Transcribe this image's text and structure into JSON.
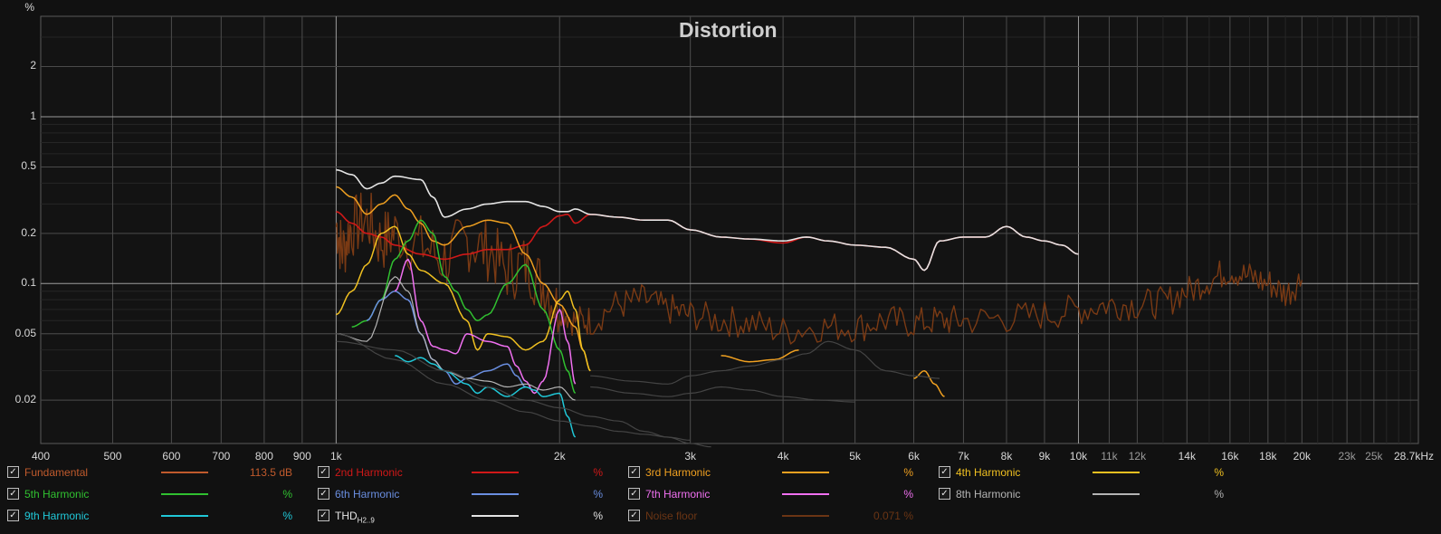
{
  "chart_data": {
    "type": "line",
    "title": "Distortion",
    "y_unit": "%",
    "y_scale": "log",
    "x_scale": "log",
    "ylim": [
      0.011,
      4.0
    ],
    "xlim": [
      400,
      28700
    ],
    "grid": true,
    "y_ticks": [
      {
        "v": 0.02,
        "label": "0.02"
      },
      {
        "v": 0.05,
        "label": "0.05"
      },
      {
        "v": 0.1,
        "label": "0.1"
      },
      {
        "v": 0.2,
        "label": "0.2"
      },
      {
        "v": 0.5,
        "label": "0.5"
      },
      {
        "v": 1,
        "label": "1"
      },
      {
        "v": 2,
        "label": "2"
      }
    ],
    "x_ticks": [
      {
        "v": 400,
        "label": "400"
      },
      {
        "v": 500,
        "label": "500"
      },
      {
        "v": 600,
        "label": "600"
      },
      {
        "v": 700,
        "label": "700"
      },
      {
        "v": 800,
        "label": "800"
      },
      {
        "v": 900,
        "label": "900"
      },
      {
        "v": 1000,
        "label": "1k"
      },
      {
        "v": 2000,
        "label": "2k"
      },
      {
        "v": 3000,
        "label": "3k"
      },
      {
        "v": 4000,
        "label": "4k"
      },
      {
        "v": 5000,
        "label": "5k"
      },
      {
        "v": 6000,
        "label": "6k"
      },
      {
        "v": 7000,
        "label": "7k"
      },
      {
        "v": 8000,
        "label": "8k"
      },
      {
        "v": 9000,
        "label": "9k"
      },
      {
        "v": 10000,
        "label": "10k"
      },
      {
        "v": 11000,
        "label": "11k",
        "minor": true
      },
      {
        "v": 12000,
        "label": "12k",
        "minor": true
      },
      {
        "v": 14000,
        "label": "14k"
      },
      {
        "v": 16000,
        "label": "16k"
      },
      {
        "v": 18000,
        "label": "18k"
      },
      {
        "v": 20000,
        "label": "20k"
      },
      {
        "v": 23000,
        "label": "23k",
        "minor": true
      },
      {
        "v": 25000,
        "label": "25k",
        "minor": true
      },
      {
        "v": 28700,
        "label": "28.7kHz"
      }
    ],
    "series": [
      {
        "key": "noise",
        "name": "Noise floor",
        "color": "#7a3a14",
        "width": 1.4,
        "jitter": 0.12,
        "x": [
          1000,
          1020,
          1050,
          1100,
          1150,
          1200,
          1300,
          1400,
          1500,
          1600,
          1700,
          1800,
          1900,
          2000,
          2100,
          2200,
          2400,
          2600,
          2800,
          3000,
          3300,
          3600,
          4000,
          4500,
          5000,
          5500,
          6000,
          6500,
          7000,
          8000,
          9000,
          10000,
          11000,
          12000,
          13000,
          14000,
          15000,
          16000,
          17000,
          18000,
          19000,
          20000
        ],
        "y": [
          0.22,
          0.16,
          0.22,
          0.24,
          0.18,
          0.2,
          0.17,
          0.14,
          0.18,
          0.16,
          0.12,
          0.13,
          0.1,
          0.07,
          0.06,
          0.06,
          0.075,
          0.08,
          0.07,
          0.065,
          0.06,
          0.058,
          0.052,
          0.055,
          0.055,
          0.06,
          0.058,
          0.06,
          0.06,
          0.062,
          0.065,
          0.07,
          0.075,
          0.075,
          0.077,
          0.09,
          0.105,
          0.12,
          0.11,
          0.1,
          0.088,
          0.105
        ]
      },
      {
        "key": "h2",
        "name": "2nd Harmonic",
        "color": "#d01818",
        "width": 1.6,
        "x": [
          1000,
          1050,
          1100,
          1150,
          1200,
          1300,
          1400,
          1500,
          1600,
          1700,
          1800,
          1900,
          2000,
          2050,
          2100,
          2200,
          2400,
          2600,
          2800,
          3000,
          3300,
          3600,
          4000,
          4300,
          4600,
          5000,
          5500,
          6000,
          6200,
          6500,
          7000,
          7500,
          8000,
          8500,
          9000,
          9500,
          10000
        ],
        "y": [
          0.27,
          0.23,
          0.2,
          0.19,
          0.17,
          0.15,
          0.14,
          0.15,
          0.16,
          0.16,
          0.17,
          0.22,
          0.255,
          0.26,
          0.23,
          0.26,
          0.25,
          0.24,
          0.24,
          0.21,
          0.19,
          0.185,
          0.175,
          0.19,
          0.18,
          0.17,
          0.165,
          0.14,
          0.12,
          0.18,
          0.19,
          0.19,
          0.22,
          0.19,
          0.18,
          0.17,
          0.15
        ]
      },
      {
        "key": "thd",
        "name": "THD",
        "color": "#e4e4e4",
        "width": 1.6,
        "x": [
          1000,
          1050,
          1100,
          1150,
          1200,
          1300,
          1350,
          1400,
          1500,
          1600,
          1700,
          1800,
          1900,
          2000,
          2050,
          2100,
          2200,
          2400,
          2600,
          2800,
          3000,
          3300,
          3600,
          4000,
          4300,
          4600,
          5000,
          5500,
          6000,
          6200,
          6500,
          7000,
          7500,
          8000,
          8500,
          9000,
          9500,
          10000
        ],
        "y": [
          0.48,
          0.45,
          0.37,
          0.4,
          0.44,
          0.42,
          0.33,
          0.25,
          0.28,
          0.3,
          0.31,
          0.31,
          0.29,
          0.27,
          0.27,
          0.28,
          0.26,
          0.25,
          0.24,
          0.24,
          0.21,
          0.19,
          0.185,
          0.18,
          0.19,
          0.18,
          0.17,
          0.165,
          0.14,
          0.12,
          0.18,
          0.19,
          0.19,
          0.22,
          0.19,
          0.18,
          0.17,
          0.15
        ]
      },
      {
        "key": "h3",
        "name": "3rd Harmonic",
        "color": "#f0a020",
        "width": 1.5,
        "x": [
          1000,
          1050,
          1100,
          1150,
          1200,
          1250,
          1300,
          1350,
          1400,
          1500,
          1600,
          1700,
          1800,
          1900,
          2000,
          2100,
          2150,
          2200
        ],
        "y": [
          0.38,
          0.33,
          0.26,
          0.3,
          0.34,
          0.28,
          0.23,
          0.18,
          0.17,
          0.22,
          0.24,
          0.23,
          0.15,
          0.1,
          0.075,
          0.055,
          0.04,
          0.03
        ]
      },
      {
        "key": "h3b",
        "name": "",
        "color": "#f0a020",
        "width": 1.5,
        "x": [
          3300,
          3600,
          3900,
          4200
        ],
        "y": [
          0.037,
          0.034,
          0.035,
          0.04
        ]
      },
      {
        "key": "h3c",
        "name": "",
        "color": "#f0a020",
        "width": 1.5,
        "x": [
          6000,
          6200,
          6400,
          6600
        ],
        "y": [
          0.027,
          0.03,
          0.025,
          0.021
        ]
      },
      {
        "key": "h4",
        "name": "4th Harmonic",
        "color": "#f0c020",
        "width": 1.5,
        "x": [
          1000,
          1050,
          1100,
          1150,
          1200,
          1250,
          1300,
          1400,
          1500,
          1550,
          1600,
          1700,
          1800,
          1900,
          2000,
          2050,
          2100,
          2150,
          2200
        ],
        "y": [
          0.065,
          0.09,
          0.13,
          0.2,
          0.22,
          0.15,
          0.12,
          0.1,
          0.06,
          0.04,
          0.05,
          0.048,
          0.04,
          0.045,
          0.08,
          0.09,
          0.07,
          0.04,
          0.03
        ]
      },
      {
        "key": "h5",
        "name": "5th Harmonic",
        "color": "#30c030",
        "width": 1.5,
        "x": [
          1050,
          1100,
          1150,
          1200,
          1250,
          1300,
          1350,
          1400,
          1450,
          1500,
          1550,
          1600,
          1700,
          1800,
          1900,
          2000,
          2050,
          2100
        ],
        "y": [
          0.055,
          0.06,
          0.08,
          0.14,
          0.18,
          0.24,
          0.2,
          0.11,
          0.09,
          0.07,
          0.06,
          0.065,
          0.1,
          0.13,
          0.07,
          0.04,
          0.03,
          0.022
        ]
      },
      {
        "key": "h6",
        "name": "6th Harmonic",
        "color": "#6a8ee0",
        "width": 1.5,
        "x": [
          1100,
          1150,
          1200,
          1250,
          1300,
          1350,
          1400,
          1450,
          1500,
          1600,
          1700,
          1750,
          1800
        ],
        "y": [
          0.06,
          0.08,
          0.09,
          0.08,
          0.05,
          0.035,
          0.03,
          0.025,
          0.027,
          0.03,
          0.033,
          0.028,
          0.024
        ]
      },
      {
        "key": "h7",
        "name": "7th Harmonic",
        "color": "#f070f0",
        "width": 1.5,
        "x": [
          1200,
          1250,
          1300,
          1350,
          1400,
          1450,
          1500,
          1600,
          1700,
          1750,
          1800,
          1850,
          1900,
          2000,
          2050,
          2100
        ],
        "y": [
          0.09,
          0.14,
          0.06,
          0.042,
          0.04,
          0.038,
          0.05,
          0.045,
          0.042,
          0.032,
          0.026,
          0.022,
          0.026,
          0.07,
          0.045,
          0.025
        ]
      },
      {
        "key": "h8",
        "name": "8th Harmonic",
        "color": "#b4b4b4",
        "width": 1.2,
        "x": [
          1000,
          1100,
          1200,
          1250,
          1300,
          1350,
          1400,
          1500,
          1600,
          1700,
          1800,
          1900,
          2000,
          2100
        ],
        "y": [
          0.05,
          0.045,
          0.11,
          0.09,
          0.05,
          0.035,
          0.03,
          0.027,
          0.026,
          0.024,
          0.025,
          0.023,
          0.024,
          0.02
        ]
      },
      {
        "key": "h9",
        "name": "9th Harmonic",
        "color": "#20c8d8",
        "width": 1.5,
        "x": [
          1200,
          1250,
          1300,
          1350,
          1400,
          1500,
          1550,
          1600,
          1700,
          1800,
          1850,
          1900,
          2000,
          2050,
          2100
        ],
        "y": [
          0.037,
          0.034,
          0.036,
          0.033,
          0.03,
          0.025,
          0.022,
          0.024,
          0.021,
          0.024,
          0.023,
          0.021,
          0.022,
          0.016,
          0.012
        ]
      },
      {
        "key": "g1",
        "name": "",
        "color": "#444444",
        "width": 1.2,
        "x": [
          1000,
          1200,
          1400,
          1600,
          1800,
          2000,
          2200,
          2400,
          2600,
          2800,
          3000
        ],
        "y": [
          0.05,
          0.035,
          0.025,
          0.02,
          0.017,
          0.015,
          0.014,
          0.013,
          0.0125,
          0.012,
          0.0115
        ]
      },
      {
        "key": "g2",
        "name": "",
        "color": "#444444",
        "width": 1.2,
        "x": [
          1000,
          1200,
          1400,
          1600,
          1800,
          2000,
          2200,
          2400,
          2600,
          2800,
          3000,
          3200
        ],
        "y": [
          0.045,
          0.04,
          0.03,
          0.024,
          0.02,
          0.018,
          0.016,
          0.015,
          0.013,
          0.012,
          0.011,
          0.0105
        ]
      },
      {
        "key": "g3",
        "name": "",
        "color": "#444444",
        "width": 1.2,
        "x": [
          2200,
          2500,
          2800,
          3000,
          3300,
          3600,
          4000,
          4300,
          4600,
          5000,
          5500,
          6000,
          6500
        ],
        "y": [
          0.028,
          0.026,
          0.025,
          0.028,
          0.03,
          0.032,
          0.035,
          0.038,
          0.045,
          0.04,
          0.03,
          0.028,
          0.027
        ]
      },
      {
        "key": "g4",
        "name": "",
        "color": "#444444",
        "width": 1.2,
        "x": [
          2200,
          2500,
          2800,
          3000,
          3300,
          3600,
          4000,
          4500,
          5000
        ],
        "y": [
          0.024,
          0.022,
          0.021,
          0.022,
          0.024,
          0.023,
          0.021,
          0.02,
          0.0195
        ]
      }
    ]
  },
  "legend": [
    {
      "name": "Fundamental",
      "sub": "",
      "value": "113.5 dB",
      "color": "#c05a2c",
      "name_color": "#c05a2c"
    },
    {
      "name": "2nd Harmonic",
      "sub": "",
      "value": "%",
      "color": "#d01818",
      "name_color": "#d01818"
    },
    {
      "name": "3rd Harmonic",
      "sub": "",
      "value": "%",
      "color": "#f0a020",
      "name_color": "#f0a020"
    },
    {
      "name": "4th Harmonic",
      "sub": "",
      "value": "%",
      "color": "#f0c020",
      "name_color": "#f0c020"
    },
    {
      "name": "5th Harmonic",
      "sub": "",
      "value": "%",
      "color": "#30c030",
      "name_color": "#30c030"
    },
    {
      "name": "6th Harmonic",
      "sub": "",
      "value": "%",
      "color": "#6a8ee0",
      "name_color": "#6a8ee0"
    },
    {
      "name": "7th Harmonic",
      "sub": "",
      "value": "%",
      "color": "#f070f0",
      "name_color": "#f070f0"
    },
    {
      "name": "8th Harmonic",
      "sub": "",
      "value": "%",
      "color": "#b4b4b4",
      "name_color": "#b4b4b4"
    },
    {
      "name": "9th Harmonic",
      "sub": "",
      "value": "%",
      "color": "#20c8d8",
      "name_color": "#20c8d8"
    },
    {
      "name": "THD",
      "sub": "H2..9",
      "value": "%",
      "color": "#e4e4e4",
      "name_color": "#e4e4e4"
    },
    {
      "name": "Noise floor",
      "sub": "",
      "value": "0.071 %",
      "color": "#6b3514",
      "name_color": "#6b3514"
    }
  ],
  "check_glyph": "✓"
}
